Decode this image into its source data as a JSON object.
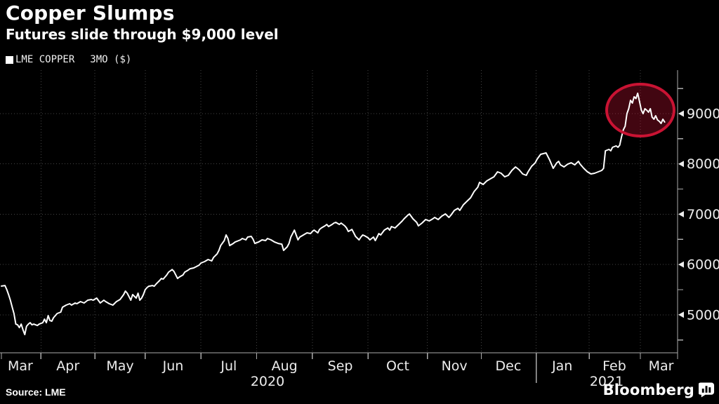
{
  "header": {
    "title": "Copper Slumps",
    "subtitle": "Futures slide through $9,000 level"
  },
  "legend": {
    "marker_color": "#ffffff",
    "series_label": "LME COPPER",
    "unit_label": "3MO ($)"
  },
  "footer": {
    "source": "Source: LME",
    "brand": "Bloomberg"
  },
  "chart_data": {
    "type": "line",
    "title": "Copper Slumps",
    "subtitle": "Futures slide through $9,000 level",
    "legend_position": "top-left",
    "grid": true,
    "line_color": "#ffffff",
    "background": "#000000",
    "x_axis": {
      "unit": "trading days (day 0 ≈ 2020-03-09, day 369 ≈ 2021-03-12)",
      "month_labels": [
        "Mar",
        "Apr",
        "May",
        "Jun",
        "Jul",
        "Aug",
        "Sep",
        "Oct",
        "Nov",
        "Dec",
        "Jan",
        "Feb",
        "Mar"
      ],
      "year_labels": [
        "2020",
        "2021"
      ]
    },
    "y_axis": {
      "unit": "$",
      "side": "right",
      "tick_values": [
        9000,
        8000,
        7000,
        6000,
        5000
      ],
      "minor_tick_values": [
        9500,
        8500,
        7500,
        6500,
        5500,
        4500
      ],
      "range": [
        4200,
        9870
      ]
    },
    "annotation": {
      "shape": "ellipse",
      "color": "#c91333",
      "fill": "rgba(201,19,51,0.33)",
      "meaning": "circles the late-Feb 2021 peak near $9,400 and the slide back through $9,000"
    },
    "series": [
      {
        "name": "LME COPPER 3MO ($)",
        "points": [
          [
            0,
            5570
          ],
          [
            2,
            5582
          ],
          [
            3,
            5499
          ],
          [
            4,
            5401
          ],
          [
            5,
            5289
          ],
          [
            6,
            5150
          ],
          [
            7,
            5024
          ],
          [
            8,
            4815
          ],
          [
            9,
            4801
          ],
          [
            10,
            4745
          ],
          [
            11,
            4815
          ],
          [
            12,
            4703
          ],
          [
            13,
            4606
          ],
          [
            14,
            4773
          ],
          [
            15,
            4815
          ],
          [
            16,
            4843
          ],
          [
            17,
            4801
          ],
          [
            18,
            4815
          ],
          [
            20,
            4787
          ],
          [
            21,
            4815
          ],
          [
            23,
            4843
          ],
          [
            24,
            4913
          ],
          [
            25,
            4843
          ],
          [
            26,
            4983
          ],
          [
            27,
            4885
          ],
          [
            28,
            4871
          ],
          [
            29,
            4941
          ],
          [
            31,
            5025
          ],
          [
            33,
            5053
          ],
          [
            34,
            5150
          ],
          [
            36,
            5192
          ],
          [
            38,
            5220
          ],
          [
            39,
            5192
          ],
          [
            41,
            5234
          ],
          [
            42,
            5220
          ],
          [
            44,
            5262
          ],
          [
            46,
            5234
          ],
          [
            48,
            5290
          ],
          [
            50,
            5304
          ],
          [
            51,
            5290
          ],
          [
            53,
            5332
          ],
          [
            55,
            5234
          ],
          [
            57,
            5290
          ],
          [
            58,
            5262
          ],
          [
            60,
            5220
          ],
          [
            62,
            5192
          ],
          [
            64,
            5262
          ],
          [
            66,
            5304
          ],
          [
            68,
            5401
          ],
          [
            69,
            5471
          ],
          [
            70,
            5429
          ],
          [
            71,
            5359
          ],
          [
            72,
            5290
          ],
          [
            73,
            5401
          ],
          [
            75,
            5332
          ],
          [
            76,
            5429
          ],
          [
            77,
            5290
          ],
          [
            78,
            5332
          ],
          [
            79,
            5401
          ],
          [
            80,
            5499
          ],
          [
            81,
            5541
          ],
          [
            82,
            5568
          ],
          [
            84,
            5582
          ],
          [
            85,
            5568
          ],
          [
            86,
            5610
          ],
          [
            88,
            5680
          ],
          [
            89,
            5722
          ],
          [
            90,
            5708
          ],
          [
            92,
            5792
          ],
          [
            93,
            5848
          ],
          [
            95,
            5900
          ],
          [
            96,
            5861
          ],
          [
            98,
            5722
          ],
          [
            99,
            5750
          ],
          [
            101,
            5792
          ],
          [
            102,
            5848
          ],
          [
            104,
            5890
          ],
          [
            105,
            5917
          ],
          [
            107,
            5931
          ],
          [
            110,
            5987
          ],
          [
            111,
            6029
          ],
          [
            113,
            6057
          ],
          [
            115,
            6099
          ],
          [
            117,
            6071
          ],
          [
            118,
            6140
          ],
          [
            120,
            6210
          ],
          [
            121,
            6280
          ],
          [
            122,
            6377
          ],
          [
            124,
            6475
          ],
          [
            125,
            6587
          ],
          [
            126,
            6517
          ],
          [
            127,
            6377
          ],
          [
            129,
            6419
          ],
          [
            130,
            6447
          ],
          [
            133,
            6489
          ],
          [
            134,
            6517
          ],
          [
            136,
            6489
          ],
          [
            137,
            6545
          ],
          [
            139,
            6559
          ],
          [
            140,
            6503
          ],
          [
            141,
            6419
          ],
          [
            143,
            6447
          ],
          [
            145,
            6489
          ],
          [
            147,
            6475
          ],
          [
            148,
            6517
          ],
          [
            150,
            6489
          ],
          [
            152,
            6447
          ],
          [
            154,
            6419
          ],
          [
            156,
            6405
          ],
          [
            157,
            6280
          ],
          [
            159,
            6350
          ],
          [
            160,
            6419
          ],
          [
            161,
            6545
          ],
          [
            163,
            6684
          ],
          [
            164,
            6587
          ],
          [
            165,
            6489
          ],
          [
            166,
            6545
          ],
          [
            168,
            6587
          ],
          [
            170,
            6629
          ],
          [
            172,
            6615
          ],
          [
            173,
            6657
          ],
          [
            174,
            6684
          ],
          [
            176,
            6629
          ],
          [
            177,
            6698
          ],
          [
            178,
            6726
          ],
          [
            180,
            6768
          ],
          [
            181,
            6796
          ],
          [
            182,
            6754
          ],
          [
            184,
            6796
          ],
          [
            185,
            6824
          ],
          [
            186,
            6838
          ],
          [
            188,
            6796
          ],
          [
            189,
            6824
          ],
          [
            191,
            6768
          ],
          [
            192,
            6726
          ],
          [
            193,
            6657
          ],
          [
            195,
            6698
          ],
          [
            196,
            6629
          ],
          [
            197,
            6559
          ],
          [
            199,
            6489
          ],
          [
            200,
            6545
          ],
          [
            201,
            6587
          ],
          [
            202,
            6573
          ],
          [
            204,
            6531
          ],
          [
            205,
            6489
          ],
          [
            207,
            6545
          ],
          [
            208,
            6475
          ],
          [
            210,
            6615
          ],
          [
            211,
            6587
          ],
          [
            213,
            6684
          ],
          [
            215,
            6726
          ],
          [
            216,
            6684
          ],
          [
            217,
            6754
          ],
          [
            219,
            6726
          ],
          [
            221,
            6796
          ],
          [
            223,
            6866
          ],
          [
            224,
            6908
          ],
          [
            226,
            6977
          ],
          [
            227,
            7005
          ],
          [
            229,
            6908
          ],
          [
            231,
            6838
          ],
          [
            232,
            6768
          ],
          [
            234,
            6824
          ],
          [
            236,
            6894
          ],
          [
            238,
            6866
          ],
          [
            240,
            6908
          ],
          [
            241,
            6936
          ],
          [
            243,
            6894
          ],
          [
            245,
            6963
          ],
          [
            247,
            7005
          ],
          [
            249,
            6936
          ],
          [
            250,
            6977
          ],
          [
            252,
            7075
          ],
          [
            254,
            7117
          ],
          [
            255,
            7075
          ],
          [
            257,
            7187
          ],
          [
            259,
            7256
          ],
          [
            261,
            7326
          ],
          [
            263,
            7452
          ],
          [
            265,
            7535
          ],
          [
            266,
            7633
          ],
          [
            268,
            7591
          ],
          [
            270,
            7661
          ],
          [
            272,
            7703
          ],
          [
            274,
            7744
          ],
          [
            276,
            7842
          ],
          [
            278,
            7814
          ],
          [
            280,
            7744
          ],
          [
            282,
            7772
          ],
          [
            284,
            7870
          ],
          [
            286,
            7940
          ],
          [
            288,
            7884
          ],
          [
            290,
            7800
          ],
          [
            292,
            7772
          ],
          [
            293,
            7842
          ],
          [
            295,
            7954
          ],
          [
            297,
            8023
          ],
          [
            298,
            8093
          ],
          [
            300,
            8191
          ],
          [
            303,
            8219
          ],
          [
            305,
            8079
          ],
          [
            307,
            7912
          ],
          [
            309,
            8023
          ],
          [
            310,
            8051
          ],
          [
            311,
            7982
          ],
          [
            313,
            7940
          ],
          [
            315,
            7995
          ],
          [
            317,
            8023
          ],
          [
            319,
            7982
          ],
          [
            321,
            8051
          ],
          [
            322,
            7995
          ],
          [
            324,
            7912
          ],
          [
            326,
            7842
          ],
          [
            328,
            7800
          ],
          [
            330,
            7814
          ],
          [
            332,
            7842
          ],
          [
            334,
            7870
          ],
          [
            335,
            7912
          ],
          [
            336,
            8261
          ],
          [
            338,
            8289
          ],
          [
            339,
            8261
          ],
          [
            340,
            8331
          ],
          [
            342,
            8359
          ],
          [
            343,
            8331
          ],
          [
            344,
            8373
          ],
          [
            345,
            8540
          ],
          [
            346,
            8680
          ],
          [
            347,
            8749
          ],
          [
            348,
            9000
          ],
          [
            349,
            9098
          ],
          [
            350,
            9265
          ],
          [
            351,
            9209
          ],
          [
            352,
            9335
          ],
          [
            353,
            9300
          ],
          [
            354,
            9405
          ],
          [
            355,
            9240
          ],
          [
            356,
            9070
          ],
          [
            357,
            9000
          ],
          [
            358,
            9098
          ],
          [
            359,
            9070
          ],
          [
            360,
            9028
          ],
          [
            361,
            9098
          ],
          [
            362,
            8930
          ],
          [
            363,
            8889
          ],
          [
            364,
            8958
          ],
          [
            365,
            8875
          ],
          [
            366,
            8847
          ],
          [
            367,
            8805
          ],
          [
            368,
            8889
          ],
          [
            369,
            8833
          ]
        ]
      }
    ]
  }
}
